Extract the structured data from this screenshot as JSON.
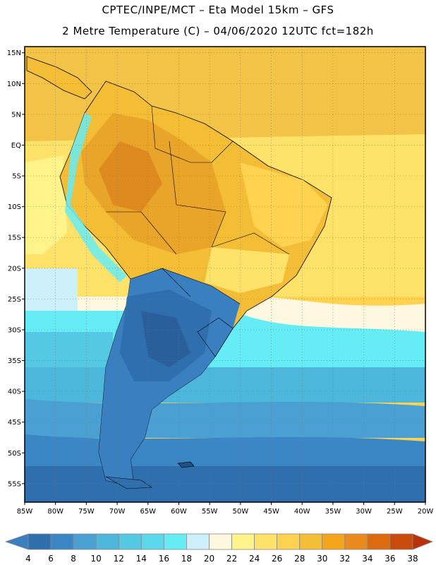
{
  "header": {
    "line1": "CPTEC/INPE/MCT  –   Eta Model 15km  –  GFS",
    "line2": "2 Metre Temperature (C)  –  04/06/2020 12UTC fct=182h"
  },
  "map": {
    "lon_range": [
      -85,
      -20
    ],
    "lat_range": [
      -58,
      16
    ],
    "lat_ticks": [
      {
        "lat": 15,
        "label": "15N"
      },
      {
        "lat": 10,
        "label": "10N"
      },
      {
        "lat": 5,
        "label": "5N"
      },
      {
        "lat": 0,
        "label": "EQ"
      },
      {
        "lat": -5,
        "label": "5S"
      },
      {
        "lat": -10,
        "label": "10S"
      },
      {
        "lat": -15,
        "label": "15S"
      },
      {
        "lat": -20,
        "label": "20S"
      },
      {
        "lat": -25,
        "label": "25S"
      },
      {
        "lat": -30,
        "label": "30S"
      },
      {
        "lat": -35,
        "label": "35S"
      },
      {
        "lat": -40,
        "label": "40S"
      },
      {
        "lat": -45,
        "label": "45S"
      },
      {
        "lat": -50,
        "label": "50S"
      },
      {
        "lat": -55,
        "label": "55S"
      }
    ],
    "lon_ticks": [
      {
        "lon": -85,
        "label": "85W"
      },
      {
        "lon": -80,
        "label": "80W"
      },
      {
        "lon": -75,
        "label": "75W"
      },
      {
        "lon": -70,
        "label": "70W"
      },
      {
        "lon": -65,
        "label": "65W"
      },
      {
        "lon": -60,
        "label": "60W"
      },
      {
        "lon": -55,
        "label": "55W"
      },
      {
        "lon": -50,
        "label": "50W"
      },
      {
        "lon": -45,
        "label": "45W"
      },
      {
        "lon": -40,
        "label": "40W"
      },
      {
        "lon": -35,
        "label": "35W"
      },
      {
        "lon": -30,
        "label": "30W"
      },
      {
        "lon": -25,
        "label": "25W"
      },
      {
        "lon": -20,
        "label": "20W"
      }
    ]
  },
  "colorbar": {
    "labels": [
      "4",
      "6",
      "8",
      "10",
      "12",
      "14",
      "16",
      "18",
      "20",
      "22",
      "24",
      "26",
      "28",
      "30",
      "32",
      "34",
      "36",
      "38"
    ],
    "colors": [
      "#3a7fbf",
      "#2f6fae",
      "#3b86c4",
      "#4aa0d2",
      "#4db6db",
      "#55c8e3",
      "#5ad8ec",
      "#66ecf5",
      "#cdeff9",
      "#fff8e1",
      "#fff38a",
      "#ffe26a",
      "#ffd24f",
      "#f3bd36",
      "#f4a51b",
      "#ea8a1e",
      "#de6a10",
      "#c84a0c",
      "#b8330c"
    ]
  }
}
